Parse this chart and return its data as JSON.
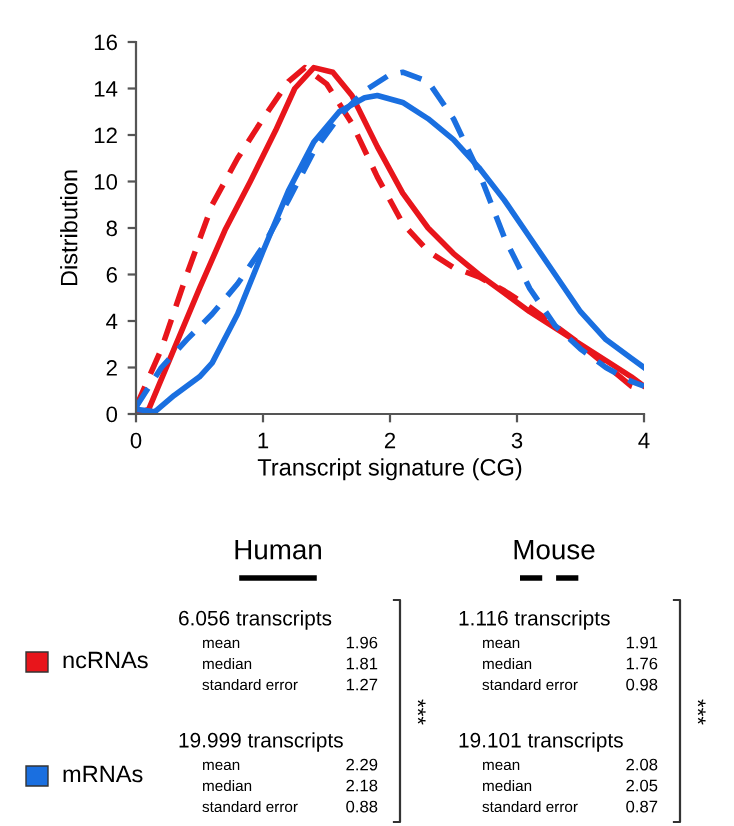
{
  "chart_data": {
    "type": "line",
    "xlabel": "Transcript signature (CG)",
    "ylabel": "Distribution",
    "xlim": [
      0,
      4
    ],
    "xticks": [
      0,
      1,
      2,
      3,
      4
    ],
    "ylim": [
      0,
      16
    ],
    "yticks": [
      0,
      2,
      4,
      6,
      8,
      10,
      12,
      14,
      16
    ],
    "grid": false,
    "legend": false,
    "marker": "none",
    "series": [
      {
        "color": "#e8151b",
        "line_style": "solid",
        "x": [
          0,
          0.1,
          0.3,
          0.5,
          0.7,
          0.9,
          1.1,
          1.25,
          1.4,
          1.55,
          1.7,
          1.9,
          2.1,
          2.3,
          2.5,
          2.7,
          2.9,
          3.1,
          3.3,
          3.5,
          3.7,
          3.9,
          4
        ],
        "values": [
          0,
          0.2,
          2.8,
          5.4,
          7.9,
          10,
          12.2,
          14,
          14.9,
          14.7,
          13.7,
          11.5,
          9.5,
          8,
          6.9,
          6,
          5.2,
          4.4,
          3.7,
          3,
          2.3,
          1.6,
          1.2
        ]
      },
      {
        "color": "#e8151b",
        "line_style": "dashed",
        "x": [
          0,
          0.2,
          0.4,
          0.6,
          0.8,
          1.0,
          1.2,
          1.33,
          1.5,
          1.7,
          1.9,
          2.1,
          2.3,
          2.5,
          2.7,
          2.9,
          3.1,
          3.3,
          3.5,
          3.7,
          3.9,
          4
        ],
        "values": [
          0.3,
          2.8,
          6,
          9,
          11,
          12.7,
          14.3,
          14.9,
          14.2,
          12.5,
          10.2,
          8.2,
          7,
          6.3,
          5.9,
          5.3,
          4.6,
          3.8,
          3,
          2.1,
          1.2,
          1.0
        ]
      },
      {
        "color": "#1a6fe0",
        "line_style": "solid",
        "x": [
          0,
          0.15,
          0.3,
          0.5,
          0.6,
          0.8,
          1.0,
          1.2,
          1.4,
          1.6,
          1.8,
          1.9,
          2.1,
          2.3,
          2.5,
          2.7,
          2.9,
          3.1,
          3.3,
          3.5,
          3.7,
          3.9,
          4
        ],
        "values": [
          0.2,
          0.1,
          0.8,
          1.6,
          2.2,
          4.3,
          7,
          9.6,
          11.7,
          13,
          13.6,
          13.7,
          13.4,
          12.7,
          11.8,
          10.6,
          9.2,
          7.6,
          6,
          4.4,
          3.2,
          2.4,
          2.0
        ]
      },
      {
        "color": "#1a6fe0",
        "line_style": "dashed",
        "x": [
          0,
          0.2,
          0.4,
          0.6,
          0.8,
          1.0,
          1.2,
          1.4,
          1.6,
          1.8,
          2.0,
          2.1,
          2.3,
          2.5,
          2.7,
          2.9,
          3.1,
          3.3,
          3.5,
          3.7,
          3.9,
          4
        ],
        "values": [
          0.3,
          2,
          3.2,
          4.3,
          5.6,
          7.2,
          9.2,
          11.3,
          12.8,
          13.9,
          14.6,
          14.7,
          14.3,
          12.7,
          10.4,
          7.6,
          5.4,
          3.8,
          2.8,
          2.0,
          1.4,
          1.2
        ]
      }
    ],
    "annotations": [
      "Human",
      "Mouse",
      "ncRNAs",
      "mRNAs",
      "6.056 transcripts",
      "mean",
      "1.96",
      "median",
      "1.81",
      "standard error",
      "1.27",
      "1.116 transcripts",
      "mean",
      "1.91",
      "median",
      "1.76",
      "standard error",
      "0.98",
      "19.999 transcripts",
      "mean",
      "2.29",
      "median",
      "2.18",
      "standard error",
      "0.88",
      "19.101 transcripts",
      "mean",
      "2.08",
      "median",
      "2.05",
      "standard error",
      "0.87",
      "***",
      "***"
    ]
  }
}
